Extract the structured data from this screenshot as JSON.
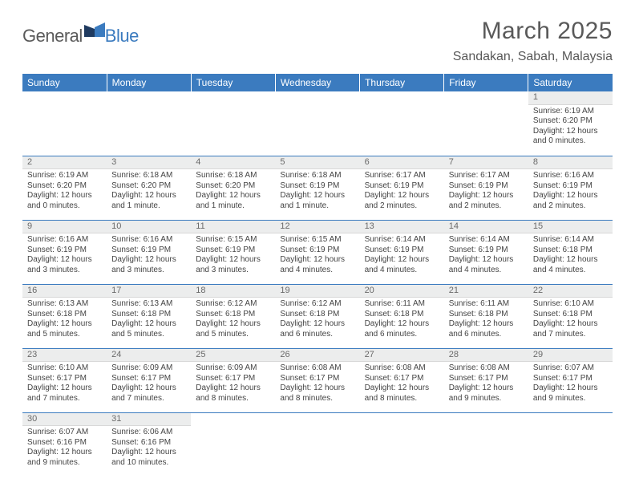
{
  "brand": {
    "part1": "General",
    "part2": "Blue"
  },
  "title": "March 2025",
  "location": "Sandakan, Sabah, Malaysia",
  "colors": {
    "header_bg": "#3b7bbf",
    "header_text": "#ffffff",
    "daynum_bg": "#eceded",
    "row_divider": "#3b7bbf",
    "text": "#444444",
    "title_text": "#595959"
  },
  "day_headers": [
    "Sunday",
    "Monday",
    "Tuesday",
    "Wednesday",
    "Thursday",
    "Friday",
    "Saturday"
  ],
  "weeks": [
    [
      null,
      null,
      null,
      null,
      null,
      null,
      {
        "n": "1",
        "sr": "Sunrise: 6:19 AM",
        "ss": "Sunset: 6:20 PM",
        "dl1": "Daylight: 12 hours",
        "dl2": "and 0 minutes."
      }
    ],
    [
      {
        "n": "2",
        "sr": "Sunrise: 6:19 AM",
        "ss": "Sunset: 6:20 PM",
        "dl1": "Daylight: 12 hours",
        "dl2": "and 0 minutes."
      },
      {
        "n": "3",
        "sr": "Sunrise: 6:18 AM",
        "ss": "Sunset: 6:20 PM",
        "dl1": "Daylight: 12 hours",
        "dl2": "and 1 minute."
      },
      {
        "n": "4",
        "sr": "Sunrise: 6:18 AM",
        "ss": "Sunset: 6:20 PM",
        "dl1": "Daylight: 12 hours",
        "dl2": "and 1 minute."
      },
      {
        "n": "5",
        "sr": "Sunrise: 6:18 AM",
        "ss": "Sunset: 6:19 PM",
        "dl1": "Daylight: 12 hours",
        "dl2": "and 1 minute."
      },
      {
        "n": "6",
        "sr": "Sunrise: 6:17 AM",
        "ss": "Sunset: 6:19 PM",
        "dl1": "Daylight: 12 hours",
        "dl2": "and 2 minutes."
      },
      {
        "n": "7",
        "sr": "Sunrise: 6:17 AM",
        "ss": "Sunset: 6:19 PM",
        "dl1": "Daylight: 12 hours",
        "dl2": "and 2 minutes."
      },
      {
        "n": "8",
        "sr": "Sunrise: 6:16 AM",
        "ss": "Sunset: 6:19 PM",
        "dl1": "Daylight: 12 hours",
        "dl2": "and 2 minutes."
      }
    ],
    [
      {
        "n": "9",
        "sr": "Sunrise: 6:16 AM",
        "ss": "Sunset: 6:19 PM",
        "dl1": "Daylight: 12 hours",
        "dl2": "and 3 minutes."
      },
      {
        "n": "10",
        "sr": "Sunrise: 6:16 AM",
        "ss": "Sunset: 6:19 PM",
        "dl1": "Daylight: 12 hours",
        "dl2": "and 3 minutes."
      },
      {
        "n": "11",
        "sr": "Sunrise: 6:15 AM",
        "ss": "Sunset: 6:19 PM",
        "dl1": "Daylight: 12 hours",
        "dl2": "and 3 minutes."
      },
      {
        "n": "12",
        "sr": "Sunrise: 6:15 AM",
        "ss": "Sunset: 6:19 PM",
        "dl1": "Daylight: 12 hours",
        "dl2": "and 4 minutes."
      },
      {
        "n": "13",
        "sr": "Sunrise: 6:14 AM",
        "ss": "Sunset: 6:19 PM",
        "dl1": "Daylight: 12 hours",
        "dl2": "and 4 minutes."
      },
      {
        "n": "14",
        "sr": "Sunrise: 6:14 AM",
        "ss": "Sunset: 6:19 PM",
        "dl1": "Daylight: 12 hours",
        "dl2": "and 4 minutes."
      },
      {
        "n": "15",
        "sr": "Sunrise: 6:14 AM",
        "ss": "Sunset: 6:18 PM",
        "dl1": "Daylight: 12 hours",
        "dl2": "and 4 minutes."
      }
    ],
    [
      {
        "n": "16",
        "sr": "Sunrise: 6:13 AM",
        "ss": "Sunset: 6:18 PM",
        "dl1": "Daylight: 12 hours",
        "dl2": "and 5 minutes."
      },
      {
        "n": "17",
        "sr": "Sunrise: 6:13 AM",
        "ss": "Sunset: 6:18 PM",
        "dl1": "Daylight: 12 hours",
        "dl2": "and 5 minutes."
      },
      {
        "n": "18",
        "sr": "Sunrise: 6:12 AM",
        "ss": "Sunset: 6:18 PM",
        "dl1": "Daylight: 12 hours",
        "dl2": "and 5 minutes."
      },
      {
        "n": "19",
        "sr": "Sunrise: 6:12 AM",
        "ss": "Sunset: 6:18 PM",
        "dl1": "Daylight: 12 hours",
        "dl2": "and 6 minutes."
      },
      {
        "n": "20",
        "sr": "Sunrise: 6:11 AM",
        "ss": "Sunset: 6:18 PM",
        "dl1": "Daylight: 12 hours",
        "dl2": "and 6 minutes."
      },
      {
        "n": "21",
        "sr": "Sunrise: 6:11 AM",
        "ss": "Sunset: 6:18 PM",
        "dl1": "Daylight: 12 hours",
        "dl2": "and 6 minutes."
      },
      {
        "n": "22",
        "sr": "Sunrise: 6:10 AM",
        "ss": "Sunset: 6:18 PM",
        "dl1": "Daylight: 12 hours",
        "dl2": "and 7 minutes."
      }
    ],
    [
      {
        "n": "23",
        "sr": "Sunrise: 6:10 AM",
        "ss": "Sunset: 6:17 PM",
        "dl1": "Daylight: 12 hours",
        "dl2": "and 7 minutes."
      },
      {
        "n": "24",
        "sr": "Sunrise: 6:09 AM",
        "ss": "Sunset: 6:17 PM",
        "dl1": "Daylight: 12 hours",
        "dl2": "and 7 minutes."
      },
      {
        "n": "25",
        "sr": "Sunrise: 6:09 AM",
        "ss": "Sunset: 6:17 PM",
        "dl1": "Daylight: 12 hours",
        "dl2": "and 8 minutes."
      },
      {
        "n": "26",
        "sr": "Sunrise: 6:08 AM",
        "ss": "Sunset: 6:17 PM",
        "dl1": "Daylight: 12 hours",
        "dl2": "and 8 minutes."
      },
      {
        "n": "27",
        "sr": "Sunrise: 6:08 AM",
        "ss": "Sunset: 6:17 PM",
        "dl1": "Daylight: 12 hours",
        "dl2": "and 8 minutes."
      },
      {
        "n": "28",
        "sr": "Sunrise: 6:08 AM",
        "ss": "Sunset: 6:17 PM",
        "dl1": "Daylight: 12 hours",
        "dl2": "and 9 minutes."
      },
      {
        "n": "29",
        "sr": "Sunrise: 6:07 AM",
        "ss": "Sunset: 6:17 PM",
        "dl1": "Daylight: 12 hours",
        "dl2": "and 9 minutes."
      }
    ],
    [
      {
        "n": "30",
        "sr": "Sunrise: 6:07 AM",
        "ss": "Sunset: 6:16 PM",
        "dl1": "Daylight: 12 hours",
        "dl2": "and 9 minutes."
      },
      {
        "n": "31",
        "sr": "Sunrise: 6:06 AM",
        "ss": "Sunset: 6:16 PM",
        "dl1": "Daylight: 12 hours",
        "dl2": "and 10 minutes."
      },
      null,
      null,
      null,
      null,
      null
    ]
  ]
}
